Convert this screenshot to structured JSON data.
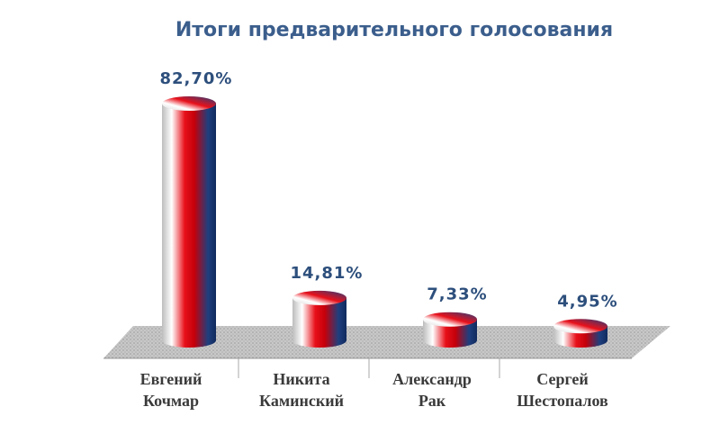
{
  "chart_data": {
    "type": "cylinder",
    "title": "Итоги предварительного голосования",
    "categories": [
      [
        "Евгений",
        "Кочмар"
      ],
      [
        "Никита",
        "Каминский"
      ],
      [
        "Александр",
        "Рак"
      ],
      [
        "Сергей",
        "Шестопалов"
      ]
    ],
    "values": [
      82.7,
      14.81,
      7.33,
      4.95
    ],
    "value_labels": [
      "82,70%",
      "14,81%",
      "7,33%",
      "4,95%"
    ]
  }
}
